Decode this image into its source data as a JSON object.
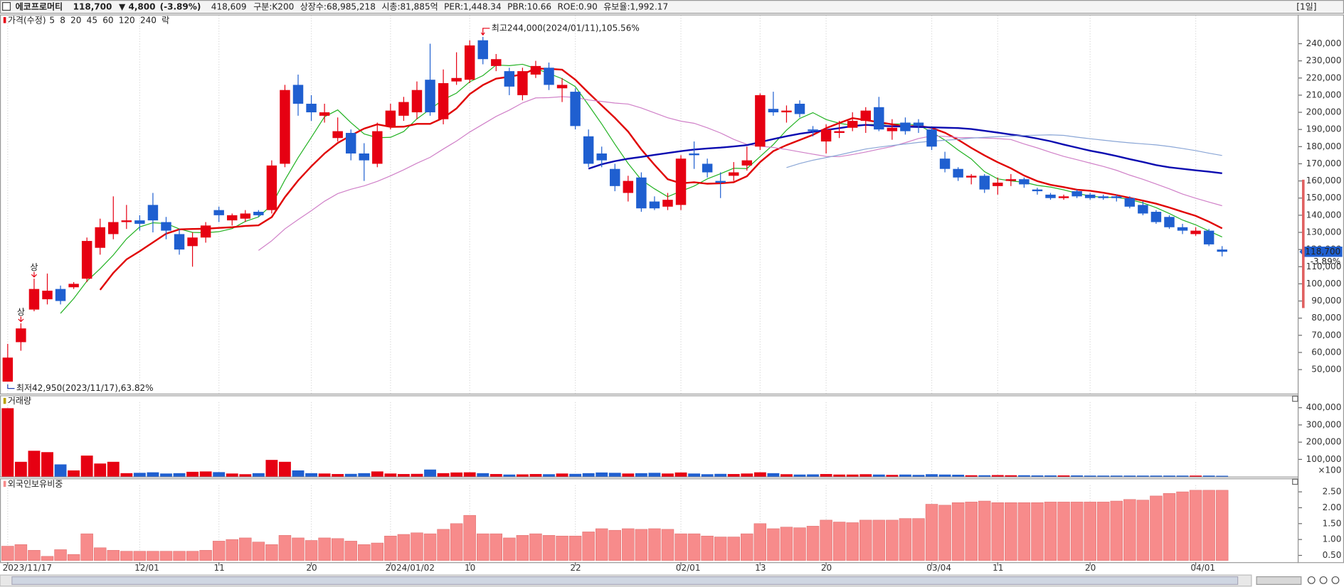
{
  "header": {
    "name": "에코프로머티",
    "price": "118,700",
    "change": "▼ 4,800",
    "change_pct": "(-3.89%)",
    "volume": "418,609",
    "items": [
      "구분:K200",
      "상장수:68,985,218",
      "시총:81,885억",
      "PER:1,448.34",
      "PBR:10.66",
      "ROE:0.90",
      "유보율:1,992.17"
    ],
    "period": "[1일]"
  },
  "chart_data": [
    {
      "type": "candlestick",
      "title": "가격(수정)",
      "lock_label": "락",
      "limit_up_label": "상",
      "high_annotation": "최고244,000(2024/01/11),105.56%",
      "low_annotation": "최저42,950(2023/11/17),63.82%",
      "price_tag": {
        "value": "118,700",
        "change": "-3.89%"
      },
      "up_color": "#e60012",
      "down_color": "#1f5fd0",
      "moving_averages": [
        {
          "name": "5",
          "color": "#22b222"
        },
        {
          "name": "8",
          "color": "#e00000"
        },
        {
          "name": "20",
          "color": "#d080c8"
        },
        {
          "name": "45",
          "color": "#0a0ab0"
        },
        {
          "name": "60",
          "color": "#8aa6d6"
        },
        {
          "name": "120",
          "color": "#3aa0a0"
        },
        {
          "name": "240",
          "color": "#8040c0"
        }
      ],
      "categories": [
        "2023/11/17",
        null,
        null,
        null,
        null,
        null,
        null,
        null,
        null,
        null,
        "12/01",
        null,
        null,
        null,
        null,
        null,
        "11",
        null,
        null,
        null,
        null,
        null,
        null,
        "20",
        null,
        null,
        null,
        null,
        null,
        "2024/01/02",
        null,
        null,
        null,
        null,
        null,
        "10",
        null,
        null,
        null,
        null,
        null,
        null,
        null,
        "22",
        null,
        null,
        null,
        null,
        null,
        null,
        null,
        "02/01",
        null,
        null,
        null,
        null,
        null,
        "13",
        null,
        null,
        null,
        null,
        "20",
        null,
        null,
        null,
        null,
        null,
        null,
        null,
        "03/04",
        null,
        null,
        null,
        null,
        "11",
        null,
        null,
        null,
        null,
        null,
        null,
        "20",
        null,
        null,
        null,
        null,
        null,
        null,
        null,
        "04/01",
        null,
        null
      ],
      "open": [
        43000,
        66000,
        85000,
        91000,
        97000,
        98000,
        103000,
        121000,
        129000,
        136000,
        137000,
        146000,
        136000,
        129000,
        122000,
        127000,
        143000,
        137000,
        138000,
        142000,
        143000,
        170000,
        216000,
        205000,
        198000,
        185000,
        188000,
        176000,
        170000,
        192000,
        198000,
        200000,
        219000,
        196000,
        218000,
        219000,
        242000,
        227000,
        224000,
        210000,
        222000,
        226000,
        214000,
        212000,
        186000,
        176000,
        167000,
        153000,
        162000,
        148000,
        145000,
        146000,
        176000,
        170000,
        160000,
        163000,
        169000,
        180000,
        202000,
        200000,
        205000,
        190000,
        183000,
        188000,
        191000,
        195000,
        203000,
        189000,
        194000,
        194000,
        190000,
        173000,
        167000,
        162000,
        163000,
        157000,
        160000,
        161000,
        155000,
        152000,
        150000,
        154000,
        152000,
        151000,
        151000,
        150000,
        146000,
        142000,
        139000,
        133000,
        129000,
        131000,
        120000
      ],
      "high": [
        65000,
        77000,
        103000,
        106000,
        99000,
        101000,
        127000,
        138000,
        151000,
        146000,
        140000,
        153000,
        139000,
        132000,
        130000,
        136000,
        145000,
        141000,
        143000,
        143000,
        172000,
        216000,
        222000,
        210000,
        205000,
        197000,
        190000,
        182000,
        194000,
        205000,
        209000,
        218000,
        240000,
        225000,
        235000,
        242000,
        244000,
        234000,
        226000,
        226000,
        230000,
        229000,
        220000,
        214000,
        190000,
        180000,
        170000,
        163000,
        165000,
        151000,
        153000,
        175000,
        183000,
        173000,
        165000,
        171000,
        180000,
        211000,
        212000,
        204000,
        207000,
        192000,
        193000,
        195000,
        200000,
        203000,
        209000,
        196000,
        197000,
        196000,
        191000,
        177000,
        168000,
        164000,
        164000,
        162000,
        164000,
        162000,
        156000,
        153000,
        152000,
        155000,
        153000,
        152000,
        152000,
        151000,
        148000,
        143000,
        140000,
        135000,
        133000,
        132000,
        122000
      ],
      "low": [
        42950,
        61000,
        84000,
        88000,
        88000,
        97000,
        101000,
        117000,
        126000,
        132000,
        131000,
        130000,
        126000,
        117000,
        110000,
        124000,
        136000,
        134000,
        136000,
        139000,
        141000,
        168000,
        198000,
        195000,
        194000,
        183000,
        172000,
        160000,
        168000,
        190000,
        195000,
        196000,
        198000,
        193000,
        216000,
        217000,
        228000,
        224000,
        210000,
        207000,
        220000,
        213000,
        206000,
        190000,
        168000,
        168000,
        154000,
        148000,
        142000,
        143000,
        143000,
        143000,
        167000,
        162000,
        150000,
        160000,
        166000,
        178000,
        198000,
        194000,
        197000,
        186000,
        176000,
        185000,
        189000,
        188000,
        189000,
        184000,
        187000,
        188000,
        178000,
        165000,
        160000,
        158000,
        153000,
        152000,
        157000,
        156000,
        152000,
        149000,
        149000,
        150000,
        149000,
        149000,
        148000,
        144000,
        140000,
        135000,
        132000,
        129000,
        128000,
        122000,
        116000
      ],
      "close": [
        57000,
        74000,
        97000,
        96000,
        90000,
        100000,
        125000,
        133000,
        136000,
        137000,
        135000,
        137000,
        131000,
        120000,
        127000,
        134000,
        140000,
        140000,
        141000,
        140000,
        169000,
        213000,
        205000,
        200000,
        200000,
        189000,
        176000,
        172000,
        189000,
        201000,
        206000,
        213000,
        200000,
        217000,
        220000,
        239000,
        231000,
        231000,
        215000,
        224000,
        227000,
        216000,
        216000,
        192000,
        170000,
        172000,
        157000,
        160000,
        144000,
        144000,
        149000,
        173000,
        175000,
        165000,
        159000,
        165000,
        172000,
        210000,
        200000,
        201000,
        199000,
        189000,
        190000,
        189000,
        195000,
        201000,
        190000,
        191000,
        189000,
        192000,
        180000,
        167000,
        162000,
        163000,
        155000,
        159000,
        161000,
        158000,
        154000,
        150000,
        151000,
        151000,
        150000,
        150000,
        150000,
        145000,
        141000,
        136000,
        133000,
        131000,
        131000,
        123000,
        118700
      ],
      "ylim": [
        36000,
        256500
      ],
      "yticks": [
        {
          "value": 50000,
          "label": "50,000"
        },
        {
          "value": 60000,
          "label": "60,000"
        },
        {
          "value": 70000,
          "label": "70,000"
        },
        {
          "value": 80000,
          "label": "80,000"
        },
        {
          "value": 90000,
          "label": "90,000"
        },
        {
          "value": 100000,
          "label": "100,000"
        },
        {
          "value": 110000,
          "label": "110,000"
        },
        {
          "value": 120000,
          "label": "120,000"
        },
        {
          "value": 130000,
          "label": "130,000"
        },
        {
          "value": 140000,
          "label": "140,000"
        },
        {
          "value": 150000,
          "label": "150,000"
        },
        {
          "value": 160000,
          "label": "160,000"
        },
        {
          "value": 170000,
          "label": "170,000"
        },
        {
          "value": 180000,
          "label": "180,000"
        },
        {
          "value": 190000,
          "label": "190,000"
        },
        {
          "value": 200000,
          "label": "200,000"
        },
        {
          "value": 210000,
          "label": "210,000"
        },
        {
          "value": 220000,
          "label": "220,000"
        },
        {
          "value": 230000,
          "label": "230,000"
        },
        {
          "value": 240000,
          "label": "240,000"
        }
      ]
    },
    {
      "type": "bar",
      "title": "거래량",
      "unit_label": "×100",
      "values": [
        397000,
        86000,
        150000,
        142000,
        71000,
        36000,
        122000,
        76000,
        86000,
        20000,
        22000,
        25000,
        18000,
        20000,
        28000,
        30000,
        26000,
        18000,
        14000,
        20000,
        97000,
        86000,
        36000,
        20000,
        18000,
        15000,
        16000,
        20000,
        30000,
        18000,
        15000,
        16000,
        41000,
        20000,
        24000,
        25000,
        20000,
        15000,
        12000,
        13000,
        15000,
        14000,
        18000,
        16000,
        20000,
        24000,
        22000,
        18000,
        20000,
        22000,
        18000,
        24000,
        18000,
        14000,
        16000,
        15000,
        18000,
        25000,
        20000,
        14000,
        12000,
        13000,
        15000,
        12000,
        12000,
        14000,
        12000,
        10000,
        12000,
        10000,
        14000,
        12000,
        11000,
        8000,
        8000,
        9000,
        8000,
        8000,
        7000,
        7000,
        7000,
        7000,
        6000,
        6000,
        6000,
        6000,
        6000,
        6000,
        6000,
        6000,
        6000,
        6000,
        5000
      ],
      "ylim": [
        0,
        432000
      ],
      "yticks": [
        {
          "value": 100000,
          "label": "100,000"
        },
        {
          "value": 200000,
          "label": "200,000"
        },
        {
          "value": 300000,
          "label": "300,000"
        },
        {
          "value": 400000,
          "label": "400,000"
        }
      ]
    },
    {
      "type": "bar",
      "title": "외국인보유비중",
      "color": "#f78b8b",
      "values": [
        0.79,
        0.84,
        0.66,
        0.47,
        0.68,
        0.53,
        1.18,
        0.74,
        0.66,
        0.63,
        0.63,
        0.63,
        0.63,
        0.63,
        0.63,
        0.66,
        0.95,
        1.0,
        1.05,
        0.92,
        0.84,
        1.13,
        1.05,
        0.97,
        1.05,
        1.03,
        0.95,
        0.84,
        0.89,
        1.11,
        1.16,
        1.21,
        1.18,
        1.32,
        1.5,
        1.76,
        1.18,
        1.18,
        1.05,
        1.13,
        1.18,
        1.13,
        1.11,
        1.11,
        1.24,
        1.34,
        1.29,
        1.34,
        1.32,
        1.34,
        1.32,
        1.18,
        1.18,
        1.11,
        1.08,
        1.08,
        1.18,
        1.5,
        1.34,
        1.39,
        1.37,
        1.42,
        1.61,
        1.55,
        1.53,
        1.61,
        1.61,
        1.61,
        1.66,
        1.66,
        2.11,
        2.08,
        2.16,
        2.18,
        2.21,
        2.16,
        2.16,
        2.16,
        2.16,
        2.18,
        2.18,
        2.18,
        2.18,
        2.18,
        2.21,
        2.26,
        2.24,
        2.37,
        2.45,
        2.5,
        2.55,
        2.55,
        2.55
      ],
      "ylim": [
        0.34,
        2.71
      ],
      "yticks": [
        {
          "value": 0.5,
          "label": "0.50"
        },
        {
          "value": 1.0,
          "label": "1.00"
        },
        {
          "value": 1.5,
          "label": "1.50"
        },
        {
          "value": 2.0,
          "label": "2.00"
        },
        {
          "value": 2.5,
          "label": "2.50"
        }
      ]
    }
  ]
}
